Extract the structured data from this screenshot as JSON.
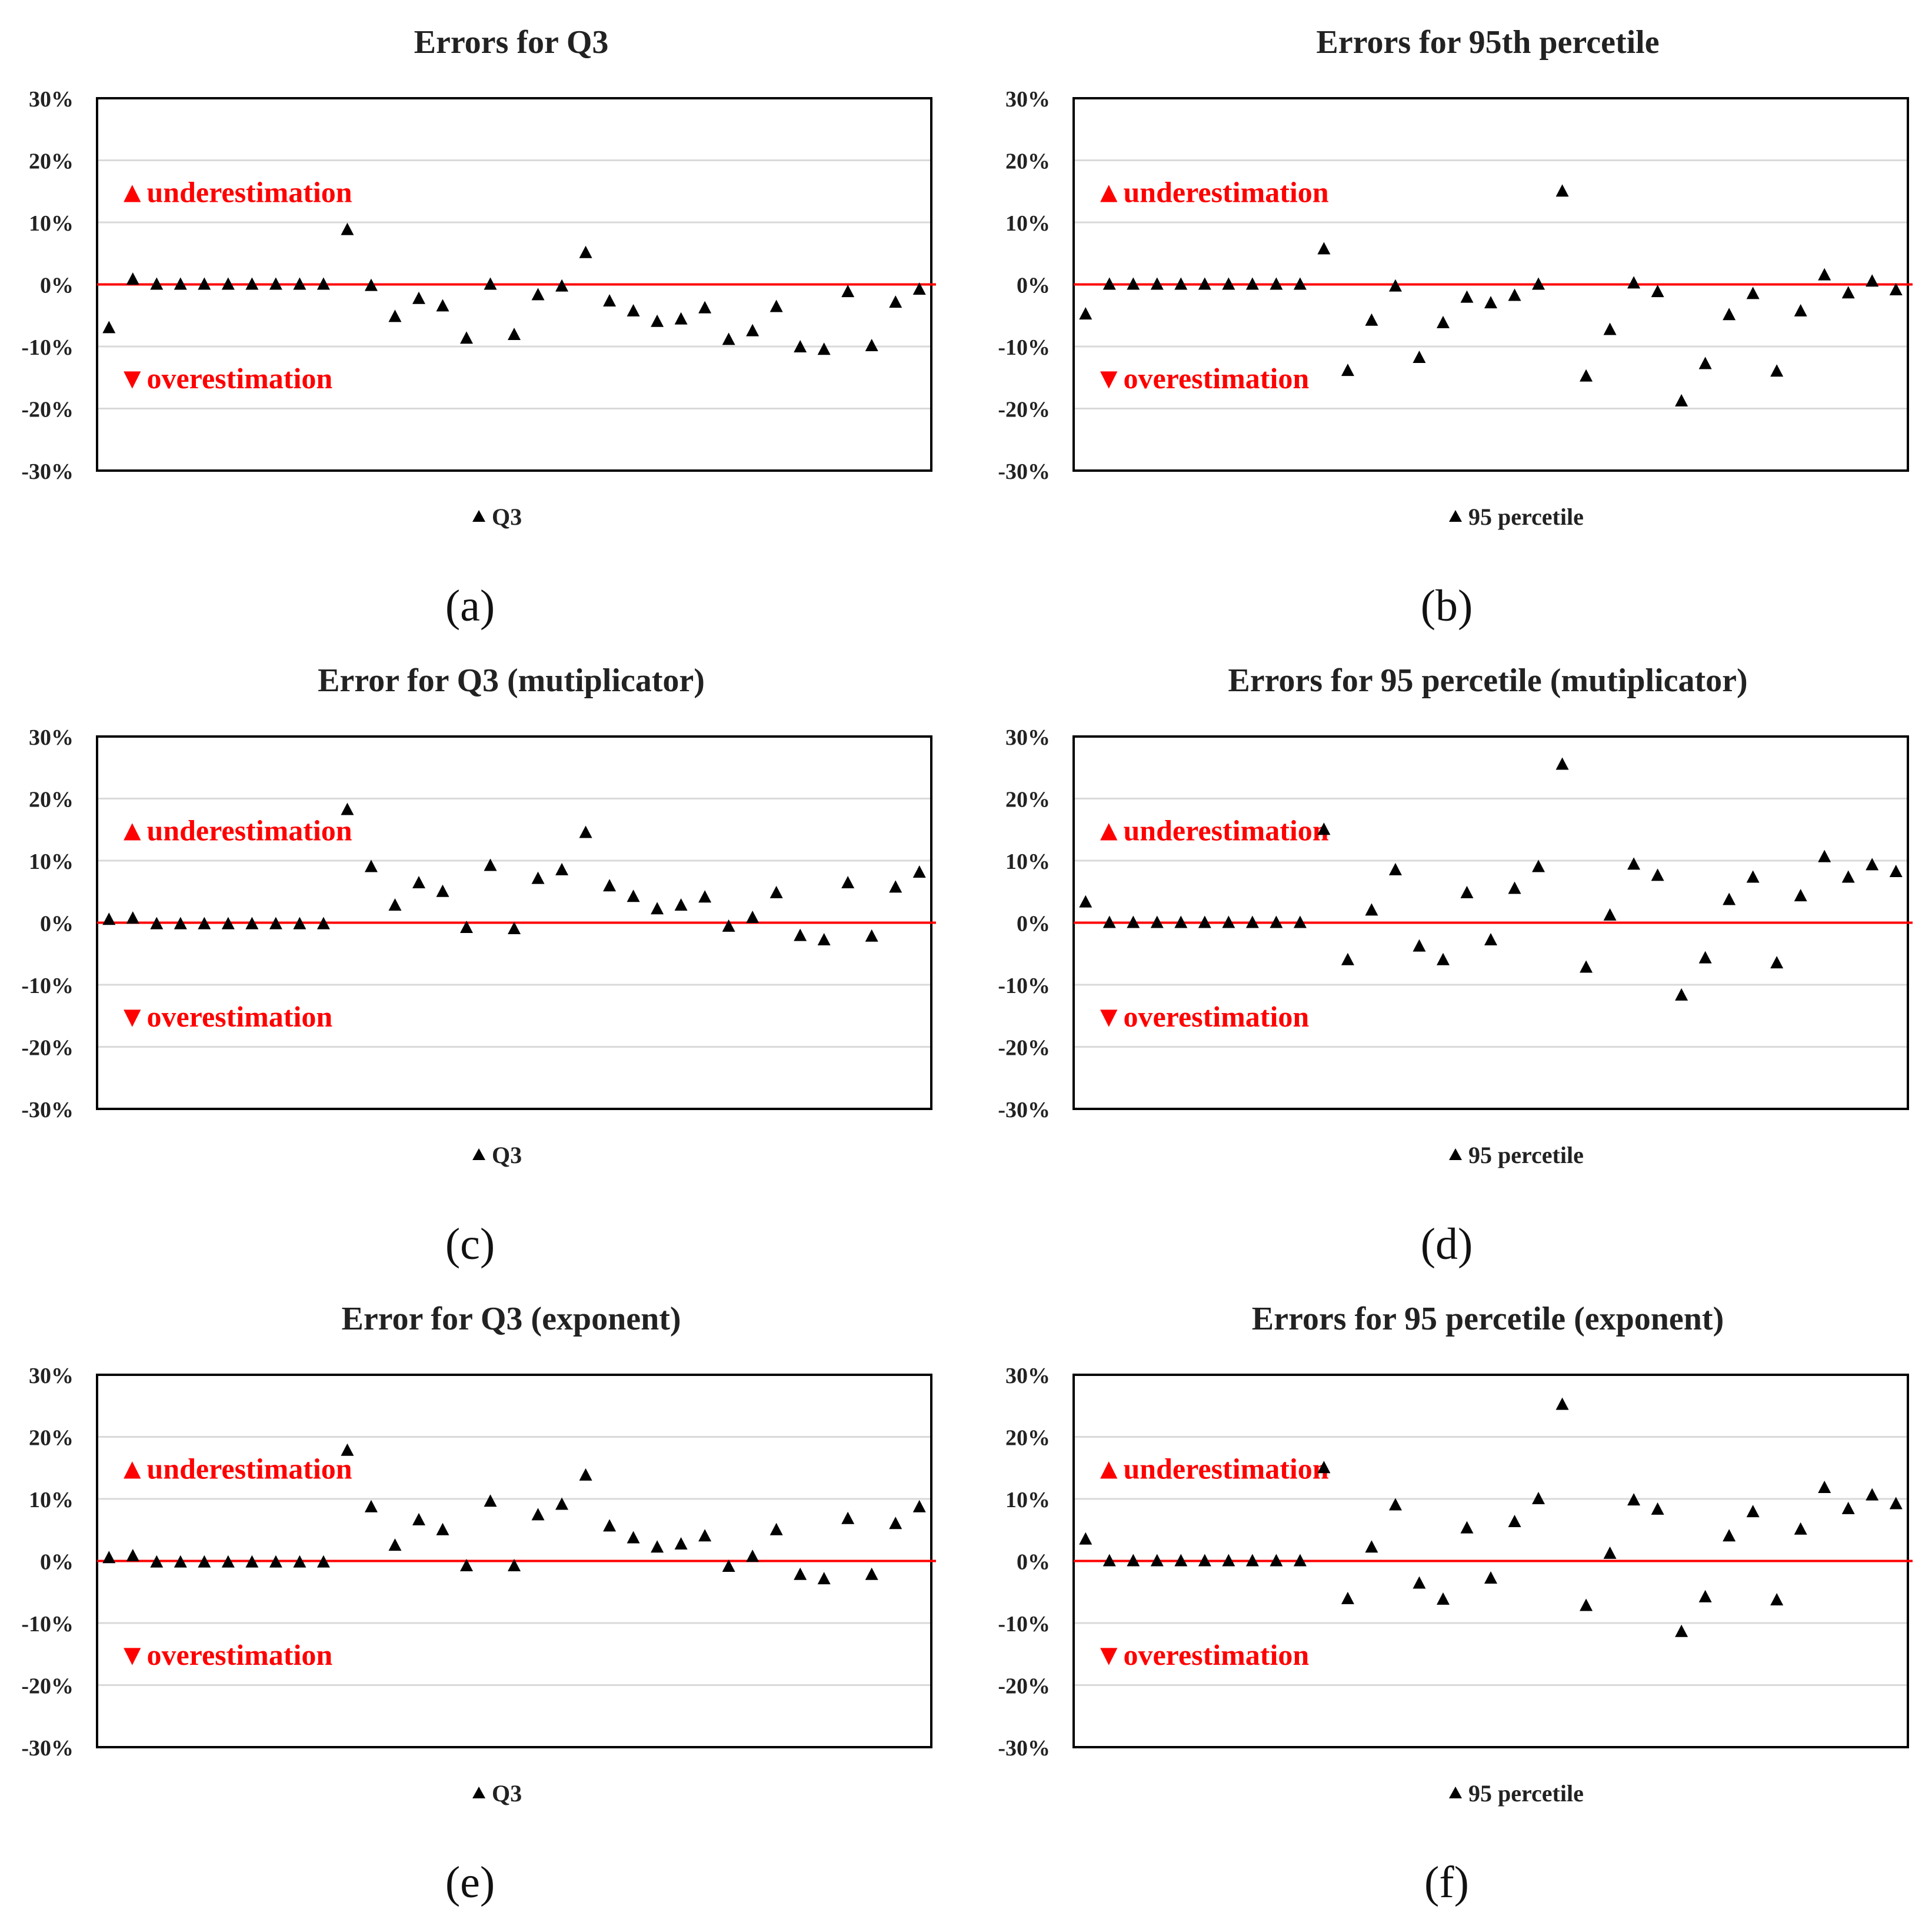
{
  "colors": {
    "marker": "#000000",
    "zero_line": "#ff0000",
    "annotation": "#ff0000",
    "grid": "#d9d9d9",
    "frame": "#000000"
  },
  "annotations": {
    "under": "▲underestimation",
    "over": "▼overestimation"
  },
  "chart_data": [
    {
      "panel_label": "(a)",
      "type": "scatter",
      "title": "Errors for Q3",
      "legend": "Q3",
      "legend_placement": "bottom-center",
      "xlabel": "",
      "ylabel": "",
      "ylim": [
        -30,
        30
      ],
      "yticks": [
        "30%",
        "20%",
        "10%",
        "0%",
        "-10%",
        "-20%",
        "-30%"
      ],
      "values": [
        -7,
        0.8,
        0,
        0,
        0,
        0,
        0,
        0,
        0,
        0,
        8.8,
        -0.2,
        -5.2,
        -2.3,
        -3.5,
        -8.7,
        0,
        -8.1,
        -1.7,
        -0.3,
        5.1,
        -2.7,
        -4.3,
        -6,
        -5.6,
        -3.8,
        -8.9,
        -7.5,
        -3.6,
        -10.1,
        -10.5,
        -1.2,
        -9.9,
        -2.9,
        -0.8
      ]
    },
    {
      "panel_label": "(b)",
      "type": "scatter",
      "title": "Errors for 95th percetile",
      "legend": "95 percetile",
      "legend_placement": "bottom-center",
      "xlabel": "",
      "ylabel": "",
      "ylim": [
        -30,
        30
      ],
      "yticks": [
        "30%",
        "20%",
        "10%",
        "0%",
        "-10%",
        "-20%",
        "-30%"
      ],
      "values": [
        -4.8,
        0,
        0,
        0,
        0,
        0,
        0,
        0,
        0,
        0,
        5.7,
        -13.9,
        -5.8,
        -0.3,
        -11.8,
        -6.2,
        -2.1,
        -3,
        -1.8,
        0,
        15,
        -14.8,
        -7.3,
        0.2,
        -1.2,
        -18.8,
        -12.8,
        -4.9,
        -1.5,
        -14,
        -4.3,
        1.5,
        -1.4,
        0.5,
        -0.9
      ]
    },
    {
      "panel_label": "(c)",
      "type": "scatter",
      "title": "Error for Q3 (mutiplicator)",
      "legend": "Q3",
      "legend_placement": "bottom-center",
      "xlabel": "",
      "ylabel": "",
      "ylim": [
        -30,
        30
      ],
      "yticks": [
        "30%",
        "20%",
        "10%",
        "0%",
        "-10%",
        "-20%",
        "-30%"
      ],
      "values": [
        0.5,
        0.7,
        -0.2,
        -0.2,
        -0.2,
        -0.2,
        -0.2,
        -0.2,
        -0.2,
        -0.2,
        18.2,
        9,
        2.8,
        6.4,
        5,
        -0.8,
        9.2,
        -1,
        7.1,
        8.5,
        14.5,
        5.9,
        4.2,
        2.2,
        2.8,
        4.1,
        -0.6,
        0.8,
        4.8,
        -2.1,
        -2.8,
        6.4,
        -2.2,
        5.7,
        8.1
      ]
    },
    {
      "panel_label": "(d)",
      "type": "scatter",
      "title": "Errors for 95 percetile (mutiplicator)",
      "legend": "95 percetile",
      "legend_placement": "bottom-center",
      "xlabel": "",
      "ylabel": "",
      "ylim": [
        -30,
        30
      ],
      "yticks": [
        "30%",
        "20%",
        "10%",
        "0%",
        "-10%",
        "-20%",
        "-30%"
      ],
      "values": [
        3.3,
        0,
        0,
        0,
        0,
        0,
        0,
        0,
        0,
        0,
        15,
        -6,
        2,
        8.5,
        -3.8,
        -6,
        4.8,
        -2.8,
        5.5,
        9,
        25.5,
        -7.2,
        1.2,
        9.4,
        7.6,
        -11.7,
        -5.7,
        3.7,
        7.3,
        -6.5,
        4.3,
        10.6,
        7.3,
        9.3,
        8.2
      ]
    },
    {
      "panel_label": "(e)",
      "type": "scatter",
      "title": "Error for Q3 (exponent)",
      "legend": "Q3",
      "legend_placement": "bottom-center",
      "xlabel": "",
      "ylabel": "",
      "ylim": [
        -30,
        30
      ],
      "yticks": [
        "30%",
        "20%",
        "10%",
        "0%",
        "-10%",
        "-20%",
        "-30%"
      ],
      "values": [
        0.5,
        0.8,
        -0.2,
        -0.2,
        -0.2,
        -0.2,
        -0.2,
        -0.2,
        -0.2,
        -0.2,
        17.8,
        8.7,
        2.5,
        6.6,
        5,
        -0.8,
        9.6,
        -0.8,
        7.4,
        9.1,
        13.8,
        5.6,
        3.7,
        2.2,
        2.7,
        4,
        -0.9,
        0.7,
        5,
        -2.2,
        -2.9,
        6.8,
        -2.2,
        6,
        8.7
      ]
    },
    {
      "panel_label": "(f)",
      "type": "scatter",
      "title": "Errors for 95 percetile (exponent)",
      "legend": "95 percetile",
      "legend_placement": "bottom-center",
      "xlabel": "",
      "ylabel": "",
      "ylim": [
        -30,
        30
      ],
      "yticks": [
        "30%",
        "20%",
        "10%",
        "0%",
        "-10%",
        "-20%",
        "-30%"
      ],
      "values": [
        3.5,
        0,
        0,
        0,
        0,
        0,
        0,
        0,
        0,
        0,
        15,
        -6.1,
        2.2,
        9,
        -3.6,
        -6.2,
        5.3,
        -2.8,
        6.3,
        10,
        25.2,
        -7.2,
        1.2,
        9.8,
        8.3,
        -11.4,
        -5.8,
        4,
        7.9,
        -6.3,
        5.1,
        11.8,
        8.4,
        10.6,
        9.2
      ]
    }
  ]
}
